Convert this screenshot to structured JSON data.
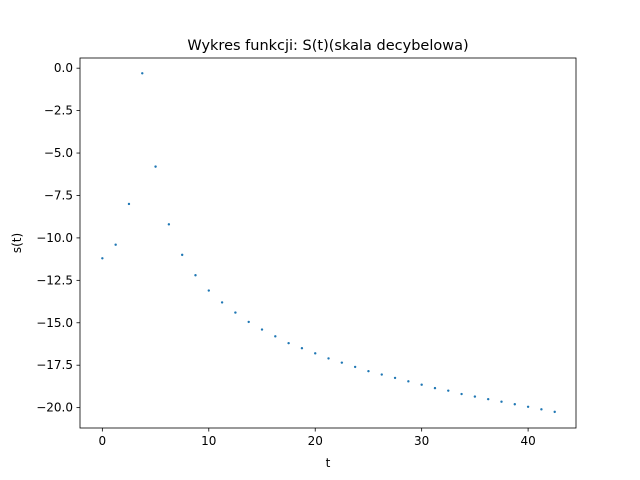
{
  "chart_data": {
    "type": "scatter",
    "title": "Wykres funkcji: S(t)(skala decybelowa)",
    "xlabel": "t",
    "ylabel": "s(t)",
    "xlim": [
      -2.1,
      44.5
    ],
    "ylim": [
      -21.2,
      0.6
    ],
    "xticks": [
      0,
      10,
      20,
      30,
      40
    ],
    "xtick_labels": [
      "0",
      "10",
      "20",
      "30",
      "40"
    ],
    "yticks": [
      0,
      -2.5,
      -5,
      -7.5,
      -10,
      -12.5,
      -15,
      -17.5,
      -20
    ],
    "ytick_labels": [
      "0.0",
      "−2.5",
      "−5.0",
      "−7.5",
      "−10.0",
      "−12.5",
      "−15.0",
      "−17.5",
      "−20.0"
    ],
    "grid": false,
    "marker_color": "#1f77b4",
    "series": [
      {
        "x": [
          0.0,
          1.25,
          2.5,
          3.75,
          5.0,
          6.25,
          7.5,
          8.75,
          10.0,
          11.25,
          12.5,
          13.75,
          15.0,
          16.25,
          17.5,
          18.75,
          20.0,
          21.25,
          22.5,
          23.75,
          25.0,
          26.25,
          27.5,
          28.75,
          30.0,
          31.25,
          32.5,
          33.75,
          35.0,
          36.25,
          37.5,
          38.75,
          40.0,
          41.25,
          42.5
        ],
        "y": [
          -11.2,
          -10.4,
          -8.0,
          -0.3,
          -5.8,
          -9.2,
          -11.0,
          -12.2,
          -13.1,
          -13.8,
          -14.4,
          -14.95,
          -15.4,
          -15.8,
          -16.2,
          -16.5,
          -16.8,
          -17.1,
          -17.35,
          -17.6,
          -17.85,
          -18.05,
          -18.25,
          -18.45,
          -18.65,
          -18.85,
          -19.0,
          -19.2,
          -19.35,
          -19.5,
          -19.65,
          -19.8,
          -19.95,
          -20.1,
          -20.25
        ]
      }
    ]
  }
}
